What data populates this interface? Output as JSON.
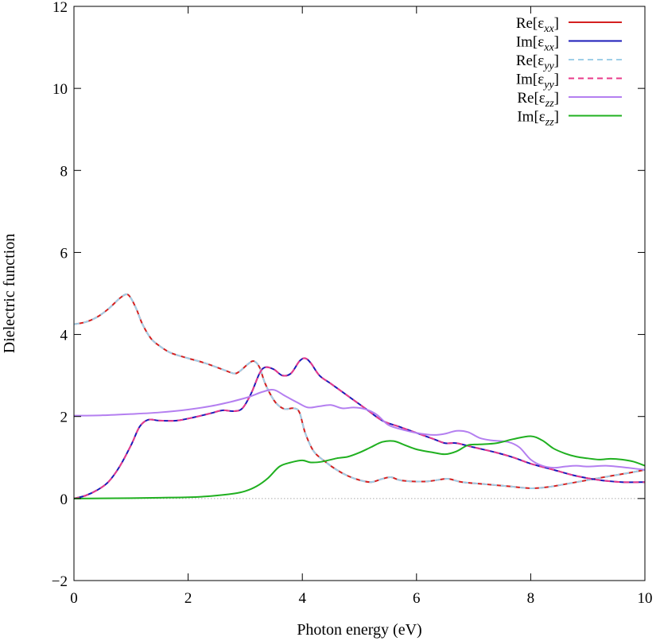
{
  "chart_data": {
    "type": "line",
    "xlabel": "Photon energy (eV)",
    "ylabel": "Dielectric function",
    "xlim": [
      0,
      10
    ],
    "ylim": [
      -2,
      12
    ],
    "x_ticks": [
      "0",
      "2",
      "4",
      "6",
      "8",
      "10"
    ],
    "y_ticks": [
      "−2",
      "0",
      "2",
      "4",
      "6",
      "8",
      "10",
      "12"
    ],
    "grid": false,
    "zero_line": true,
    "legend_position": "top-right",
    "series": [
      {
        "key": "re_xx",
        "legend_base": "Re[ε",
        "legend_sub": "xx",
        "legend_close": "]",
        "color": "#d42020",
        "dash": "solid",
        "points": [
          [
            0,
            4.25
          ],
          [
            0.2,
            4.3
          ],
          [
            0.4,
            4.42
          ],
          [
            0.6,
            4.62
          ],
          [
            0.8,
            4.88
          ],
          [
            0.92,
            4.98
          ],
          [
            1.0,
            4.88
          ],
          [
            1.1,
            4.6
          ],
          [
            1.2,
            4.25
          ],
          [
            1.35,
            3.9
          ],
          [
            1.5,
            3.72
          ],
          [
            1.7,
            3.55
          ],
          [
            2.0,
            3.42
          ],
          [
            2.3,
            3.3
          ],
          [
            2.6,
            3.15
          ],
          [
            2.8,
            3.05
          ],
          [
            2.9,
            3.1
          ],
          [
            3.05,
            3.28
          ],
          [
            3.15,
            3.35
          ],
          [
            3.25,
            3.2
          ],
          [
            3.35,
            2.8
          ],
          [
            3.5,
            2.4
          ],
          [
            3.6,
            2.25
          ],
          [
            3.7,
            2.18
          ],
          [
            3.85,
            2.2
          ],
          [
            3.95,
            2.1
          ],
          [
            4.05,
            1.6
          ],
          [
            4.2,
            1.15
          ],
          [
            4.4,
            0.9
          ],
          [
            4.6,
            0.7
          ],
          [
            4.8,
            0.55
          ],
          [
            5.0,
            0.45
          ],
          [
            5.2,
            0.4
          ],
          [
            5.4,
            0.48
          ],
          [
            5.55,
            0.52
          ],
          [
            5.7,
            0.45
          ],
          [
            5.9,
            0.42
          ],
          [
            6.2,
            0.42
          ],
          [
            6.5,
            0.48
          ],
          [
            6.6,
            0.47
          ],
          [
            6.8,
            0.4
          ],
          [
            7.2,
            0.35
          ],
          [
            7.6,
            0.3
          ],
          [
            8.0,
            0.25
          ],
          [
            8.3,
            0.28
          ],
          [
            8.6,
            0.35
          ],
          [
            9.0,
            0.45
          ],
          [
            9.4,
            0.55
          ],
          [
            9.7,
            0.62
          ],
          [
            10.0,
            0.7
          ]
        ]
      },
      {
        "key": "im_xx",
        "legend_base": "Im[ε",
        "legend_sub": "xx",
        "legend_close": "]",
        "color": "#1a1ab8",
        "dash": "solid",
        "points": [
          [
            0,
            0
          ],
          [
            0.2,
            0.07
          ],
          [
            0.4,
            0.2
          ],
          [
            0.6,
            0.4
          ],
          [
            0.8,
            0.78
          ],
          [
            1.0,
            1.3
          ],
          [
            1.15,
            1.75
          ],
          [
            1.3,
            1.92
          ],
          [
            1.5,
            1.9
          ],
          [
            1.8,
            1.9
          ],
          [
            2.1,
            1.98
          ],
          [
            2.4,
            2.08
          ],
          [
            2.6,
            2.15
          ],
          [
            2.8,
            2.13
          ],
          [
            2.95,
            2.2
          ],
          [
            3.1,
            2.55
          ],
          [
            3.25,
            3.05
          ],
          [
            3.35,
            3.2
          ],
          [
            3.5,
            3.15
          ],
          [
            3.65,
            3.0
          ],
          [
            3.8,
            3.05
          ],
          [
            3.95,
            3.35
          ],
          [
            4.05,
            3.42
          ],
          [
            4.15,
            3.3
          ],
          [
            4.3,
            3.0
          ],
          [
            4.5,
            2.8
          ],
          [
            4.8,
            2.5
          ],
          [
            5.1,
            2.2
          ],
          [
            5.4,
            1.9
          ],
          [
            5.7,
            1.75
          ],
          [
            6.0,
            1.6
          ],
          [
            6.3,
            1.45
          ],
          [
            6.5,
            1.35
          ],
          [
            6.7,
            1.35
          ],
          [
            7.0,
            1.25
          ],
          [
            7.4,
            1.12
          ],
          [
            7.7,
            1.0
          ],
          [
            8.0,
            0.85
          ],
          [
            8.4,
            0.7
          ],
          [
            8.8,
            0.55
          ],
          [
            9.2,
            0.45
          ],
          [
            9.6,
            0.4
          ],
          [
            10.0,
            0.4
          ]
        ]
      },
      {
        "key": "re_yy",
        "legend_base": "Re[ε",
        "legend_sub": "yy",
        "legend_close": "]",
        "color": "#9ecfe8",
        "dash": "dashed",
        "copy_of": "re_xx"
      },
      {
        "key": "im_yy",
        "legend_base": "Im[ε",
        "legend_sub": "yy",
        "legend_close": "]",
        "color": "#e83a8a",
        "dash": "dashed",
        "copy_of": "im_xx"
      },
      {
        "key": "re_zz",
        "legend_base": "Re[ε",
        "legend_sub": "zz",
        "legend_close": "]",
        "color": "#b47ff0",
        "dash": "solid",
        "points": [
          [
            0,
            2.02
          ],
          [
            0.5,
            2.03
          ],
          [
            1.0,
            2.06
          ],
          [
            1.5,
            2.1
          ],
          [
            2.0,
            2.17
          ],
          [
            2.5,
            2.28
          ],
          [
            3.0,
            2.45
          ],
          [
            3.3,
            2.6
          ],
          [
            3.5,
            2.65
          ],
          [
            3.7,
            2.5
          ],
          [
            3.9,
            2.35
          ],
          [
            4.1,
            2.22
          ],
          [
            4.3,
            2.25
          ],
          [
            4.5,
            2.28
          ],
          [
            4.7,
            2.2
          ],
          [
            4.9,
            2.22
          ],
          [
            5.1,
            2.18
          ],
          [
            5.3,
            2.05
          ],
          [
            5.5,
            1.8
          ],
          [
            5.7,
            1.7
          ],
          [
            6.0,
            1.6
          ],
          [
            6.3,
            1.55
          ],
          [
            6.5,
            1.58
          ],
          [
            6.7,
            1.65
          ],
          [
            6.9,
            1.62
          ],
          [
            7.1,
            1.48
          ],
          [
            7.3,
            1.42
          ],
          [
            7.6,
            1.38
          ],
          [
            7.8,
            1.25
          ],
          [
            8.0,
            0.95
          ],
          [
            8.2,
            0.8
          ],
          [
            8.4,
            0.75
          ],
          [
            8.6,
            0.78
          ],
          [
            8.8,
            0.8
          ],
          [
            9.0,
            0.78
          ],
          [
            9.3,
            0.8
          ],
          [
            9.5,
            0.78
          ],
          [
            9.7,
            0.75
          ],
          [
            10.0,
            0.7
          ]
        ]
      },
      {
        "key": "im_zz",
        "legend_base": "Im[ε",
        "legend_sub": "zz",
        "legend_close": "]",
        "color": "#20b020",
        "dash": "solid",
        "points": [
          [
            0,
            0
          ],
          [
            0.5,
            0.005
          ],
          [
            1.0,
            0.01
          ],
          [
            1.5,
            0.02
          ],
          [
            2.0,
            0.03
          ],
          [
            2.4,
            0.06
          ],
          [
            2.8,
            0.12
          ],
          [
            3.0,
            0.18
          ],
          [
            3.2,
            0.3
          ],
          [
            3.4,
            0.5
          ],
          [
            3.6,
            0.78
          ],
          [
            3.8,
            0.88
          ],
          [
            4.0,
            0.93
          ],
          [
            4.15,
            0.88
          ],
          [
            4.35,
            0.9
          ],
          [
            4.6,
            0.98
          ],
          [
            4.8,
            1.02
          ],
          [
            5.0,
            1.12
          ],
          [
            5.2,
            1.25
          ],
          [
            5.4,
            1.38
          ],
          [
            5.6,
            1.4
          ],
          [
            5.8,
            1.3
          ],
          [
            6.0,
            1.2
          ],
          [
            6.3,
            1.12
          ],
          [
            6.5,
            1.08
          ],
          [
            6.7,
            1.15
          ],
          [
            6.9,
            1.3
          ],
          [
            7.1,
            1.32
          ],
          [
            7.4,
            1.35
          ],
          [
            7.7,
            1.45
          ],
          [
            8.0,
            1.52
          ],
          [
            8.2,
            1.42
          ],
          [
            8.4,
            1.22
          ],
          [
            8.6,
            1.1
          ],
          [
            8.8,
            1.02
          ],
          [
            9.0,
            0.98
          ],
          [
            9.2,
            0.95
          ],
          [
            9.4,
            0.97
          ],
          [
            9.6,
            0.95
          ],
          [
            9.8,
            0.9
          ],
          [
            10.0,
            0.8
          ]
        ]
      }
    ]
  }
}
